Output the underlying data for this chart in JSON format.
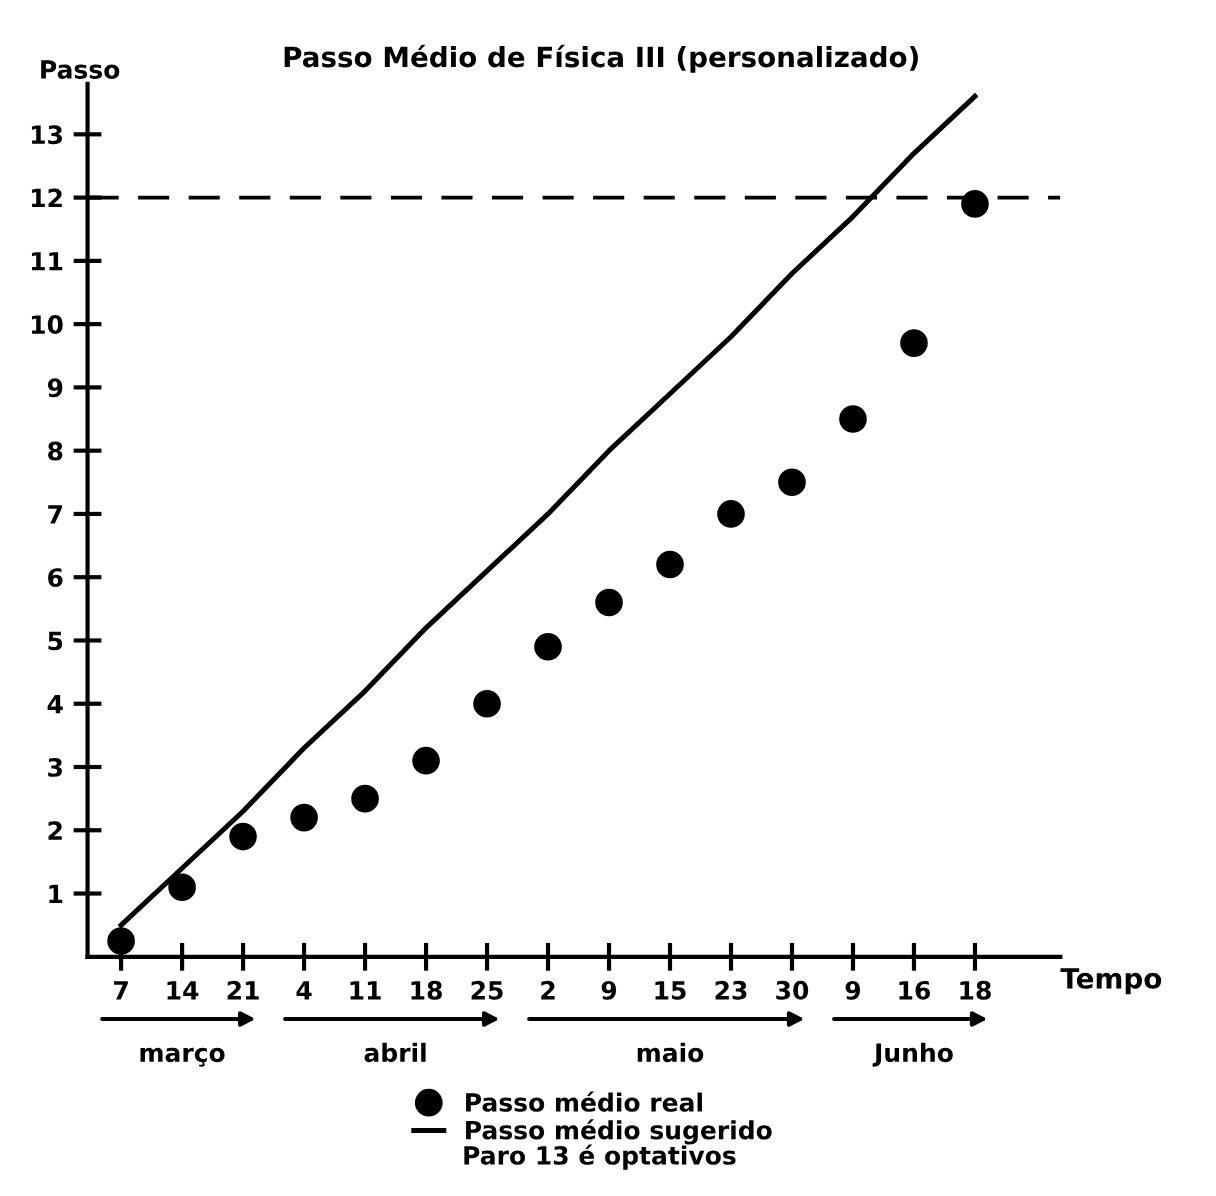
{
  "chart_data": {
    "type": "scatter",
    "title": "Passo Médio de Física III (personalizado)",
    "xlabel": "Tempo",
    "ylabel": "Passo",
    "categories": [
      "7",
      "14",
      "21",
      "4",
      "11",
      "18",
      "25",
      "2",
      "9",
      "15",
      "23",
      "30",
      "9",
      "16",
      "18"
    ],
    "series": [
      {
        "name": "Passo médio real",
        "type": "scatter",
        "color": "#000000",
        "marker": "circle",
        "values": [
          0.25,
          1.1,
          1.9,
          2.2,
          2.5,
          3.1,
          4.0,
          4.9,
          5.6,
          6.2,
          7.0,
          7.5,
          8.5,
          9.7,
          11.9
        ]
      },
      {
        "name": "Passo médio sugerido",
        "type": "line",
        "color": "#000000",
        "marker": "none",
        "line_style": "solid",
        "values": [
          0.5,
          1.4,
          2.3,
          3.3,
          4.2,
          5.2,
          6.1,
          7.0,
          8.0,
          8.9,
          9.8,
          10.8,
          11.7,
          12.7,
          13.6
        ]
      }
    ],
    "ylim": [
      0,
      13.8
    ],
    "yticks": [
      1,
      2,
      3,
      4,
      5,
      6,
      7,
      8,
      9,
      10,
      11,
      12,
      13
    ],
    "ref_lines": [
      {
        "axis": "y",
        "value": 12,
        "line_style": "dashed",
        "color": "#000000"
      }
    ],
    "annotations": [
      "março",
      "abril",
      "maio",
      "Junho",
      "Paro 13 é optativos"
    ],
    "legend": "bottom",
    "grid": false
  }
}
